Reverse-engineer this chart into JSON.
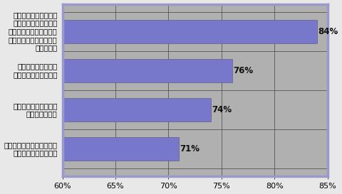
{
  "categories": [
    "走行距離を減らすため\n自家用車以外の移動機\n関を使うか、色々な用事\nをまとめて一度に済ます\nようにする",
    "燃費を上げるために\nさまざまな工夫をする",
    "もっとも安いガソリン\nスタンドを探す",
    "もっと燃費の良い自動車に\n買い換えるか検討する"
  ],
  "values": [
    84,
    76,
    74,
    71
  ],
  "bar_color": "#7777cc",
  "plot_bg_color": "#b0b0b0",
  "fig_bg_color": "#e8e8e8",
  "xlim": [
    60,
    85
  ],
  "xticks": [
    60,
    65,
    70,
    75,
    80,
    85
  ],
  "xtick_labels": [
    "60%",
    "65%",
    "70%",
    "75%",
    "80%",
    "85%"
  ],
  "grid_color": "#444444",
  "bar_height": 0.6,
  "label_fontsize": 7.5,
  "tick_fontsize": 8,
  "value_fontsize": 8.5,
  "border_color": "#9999cc",
  "border_linewidth": 2.5,
  "value_label_color": "#111111"
}
